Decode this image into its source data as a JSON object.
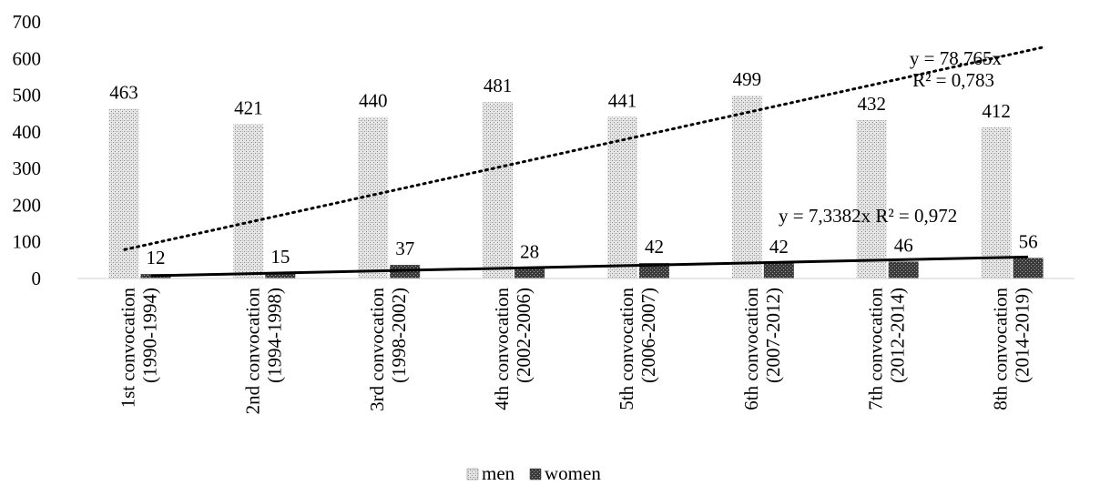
{
  "chart_data": {
    "type": "bar",
    "categories": [
      [
        "1st convocation",
        "(1990-1994)"
      ],
      [
        "2nd convocation",
        "(1994-1998)"
      ],
      [
        "3rd convocation",
        "(1998-2002)"
      ],
      [
        "4th convocation",
        "(2002-2006)"
      ],
      [
        "5th convocation",
        "(2006-2007)"
      ],
      [
        "6th convocation",
        "(2007-2012)"
      ],
      [
        "7th convocation",
        "(2012-2014)"
      ],
      [
        "8th convocation",
        "(2014-2019)"
      ]
    ],
    "series": [
      {
        "name": "men",
        "values": [
          463,
          421,
          440,
          481,
          441,
          499,
          432,
          412
        ],
        "pattern": "light-crosshatch"
      },
      {
        "name": "women",
        "values": [
          12,
          15,
          37,
          28,
          42,
          42,
          46,
          56
        ],
        "pattern": "dark-crosshatch"
      }
    ],
    "ylim": [
      0,
      700
    ],
    "yticks": [
      0,
      100,
      200,
      300,
      400,
      500,
      600,
      700
    ],
    "grid": false,
    "legend": "bottom",
    "trendlines": [
      {
        "series": "men",
        "style": "dotted",
        "slope": 78.765,
        "label_eq": "y = 78,765x",
        "label_r2": "R² = 0,783"
      },
      {
        "series": "women",
        "style": "solid",
        "slope": 7.3382,
        "label": "y = 7,3382x R² = 0,972"
      }
    ]
  }
}
